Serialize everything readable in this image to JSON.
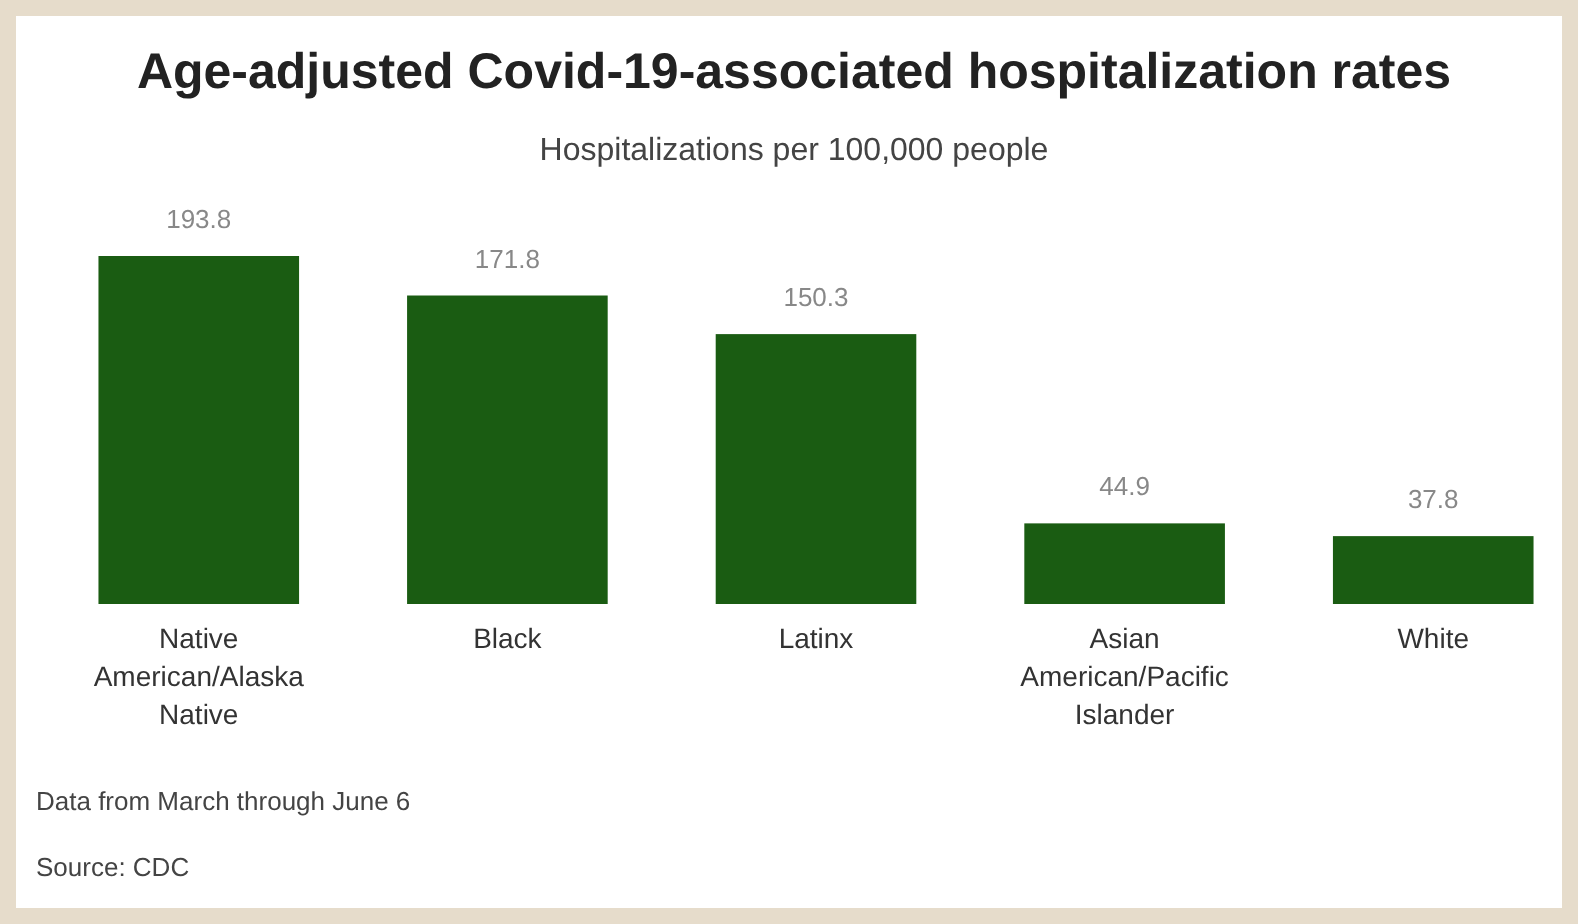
{
  "chart_data": {
    "type": "bar",
    "title": "Age-adjusted Covid-19-associated hospitalization rates",
    "subtitle": "Hospitalizations per 100,000 people",
    "categories": [
      "Native American/Alaska Native",
      "Black",
      "Latinx",
      "Asian American/Pacific Islander",
      "White"
    ],
    "values": [
      193.8,
      171.8,
      150.3,
      44.9,
      37.8
    ],
    "color": "#1a5c12",
    "data_labels": true,
    "annotations": [
      "Data from March through June 6",
      "Source: CDC"
    ]
  }
}
